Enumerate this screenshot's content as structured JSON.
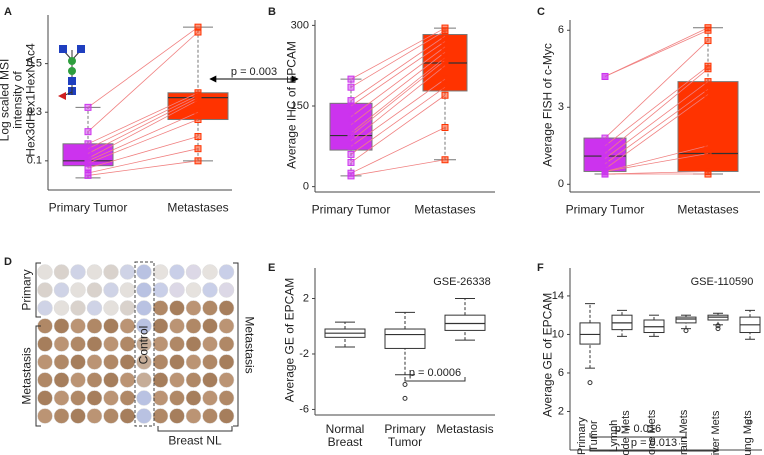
{
  "chart_data": [
    {
      "panel": "A",
      "type": "paired_box",
      "ylabel": "Log scaled MSI intensity of Hex3dHex1HexNAc4",
      "categories": [
        "Primary Tumor",
        "Metastases"
      ],
      "colors": [
        "#cc33ee",
        "#ff3300"
      ],
      "line_color": "#f08080",
      "ylim": [
        -0.02,
        0.7
      ],
      "yticks": [
        0.1,
        0.3,
        0.5
      ],
      "boxes": [
        {
          "whisker_low": 0.03,
          "q1": 0.08,
          "median": 0.1,
          "q3": 0.17,
          "whisker_high": 0.32
        },
        {
          "whisker_low": 0.1,
          "q1": 0.27,
          "median": 0.36,
          "q3": 0.38,
          "whisker_high": 0.65
        }
      ],
      "points": [
        [
          0.32,
          0.22,
          0.17,
          0.15,
          0.13,
          0.11,
          0.1,
          0.09,
          0.07,
          0.05,
          0.04
        ],
        [
          0.65,
          0.63,
          0.38,
          0.37,
          0.36,
          0.35,
          0.3,
          0.27,
          0.2,
          0.15,
          0.1
        ]
      ],
      "annotation": "p = 0.003"
    },
    {
      "panel": "B",
      "type": "paired_box",
      "ylabel": "Average IHC of EPCAM",
      "categories": [
        "Primary Tumor",
        "Metastases"
      ],
      "colors": [
        "#cc33ee",
        "#ff3300"
      ],
      "line_color": "#f08080",
      "ylim": [
        -10,
        310
      ],
      "yticks": [
        0,
        150,
        300
      ],
      "boxes": [
        {
          "whisker_low": 20,
          "q1": 68,
          "median": 95,
          "q3": 155,
          "whisker_high": 200
        },
        {
          "whisker_low": 50,
          "q1": 178,
          "median": 230,
          "q3": 283,
          "whisker_high": 295
        }
      ],
      "points": [
        [
          200,
          185,
          160,
          150,
          130,
          115,
          100,
          95,
          85,
          75,
          60,
          45,
          25,
          20
        ],
        [
          295,
          290,
          280,
          270,
          260,
          250,
          240,
          235,
          225,
          200,
          185,
          170,
          110,
          50
        ]
      ]
    },
    {
      "panel": "C",
      "type": "paired_box",
      "ylabel": "Average FISH of c-Myc",
      "categories": [
        "Primary Tumor",
        "Metastases"
      ],
      "colors": [
        "#cc33ee",
        "#ff3300"
      ],
      "line_color": "#f08080",
      "ylim": [
        -0.3,
        6.4
      ],
      "yticks": [
        0,
        3,
        6
      ],
      "boxes": [
        {
          "whisker_low": 0.4,
          "q1": 0.5,
          "median": 1.1,
          "q3": 1.8,
          "whisker_high": 1.8
        },
        {
          "whisker_low": 0.4,
          "q1": 0.5,
          "median": 1.2,
          "q3": 4.0,
          "whisker_high": 6.1
        }
      ],
      "points": [
        [
          4.2,
          4.2,
          1.8,
          1.5,
          1.2,
          1.0,
          0.8,
          0.6,
          0.5,
          0.5,
          0.4,
          0.4
        ],
        [
          6.1,
          6.0,
          5.6,
          4.6,
          4.5,
          4.0,
          3.7,
          3.5,
          1.5,
          1.2,
          0.5,
          0.4
        ]
      ]
    },
    {
      "panel": "E",
      "type": "box",
      "dataset": "GSE-26338",
      "ylabel": "Average GE of EPCAM",
      "color": "#333333",
      "categories": [
        "Normal Breast",
        "Primary Tumor",
        "Metastasis"
      ],
      "ylim": [
        -6.4,
        4.2
      ],
      "yticks": [
        -6,
        -2,
        2
      ],
      "boxes": [
        {
          "whisker_low": -1.5,
          "q1": -0.8,
          "median": -0.5,
          "q3": -0.2,
          "whisker_high": 0.3
        },
        {
          "whisker_low": -3.5,
          "q1": -1.6,
          "median": -0.6,
          "q3": -0.2,
          "whisker_high": 1.0,
          "outliers": [
            -4.2,
            -5.2
          ]
        },
        {
          "whisker_low": -1.0,
          "q1": -0.3,
          "median": 0.2,
          "q3": 0.8,
          "whisker_high": 2.0
        }
      ],
      "annotations": [
        "p = 0.0006"
      ]
    },
    {
      "panel": "F",
      "type": "box",
      "dataset": "GSE-110590",
      "ylabel": "Average GE of EPCAM",
      "color": "#333333",
      "categories": [
        "Primary Tumor",
        "Lymph node Mets",
        "Bone Mets",
        "Brain Mets",
        "Liver Mets",
        "Lung Mets"
      ],
      "ylim": [
        -2,
        16.9
      ],
      "yticks": [
        2,
        6,
        10,
        14
      ],
      "boxes": [
        {
          "whisker_low": 6.5,
          "q1": 9.0,
          "median": 10.0,
          "q3": 11.2,
          "whisker_high": 13.2,
          "outliers": [
            5.0
          ]
        },
        {
          "whisker_low": 9.8,
          "q1": 10.5,
          "median": 11.2,
          "q3": 12.0,
          "whisker_high": 12.5
        },
        {
          "whisker_low": 9.8,
          "q1": 10.2,
          "median": 10.8,
          "q3": 11.5,
          "whisker_high": 12.0
        },
        {
          "whisker_low": 10.6,
          "q1": 11.2,
          "median": 11.6,
          "q3": 11.8,
          "whisker_high": 12.0,
          "outliers": [
            10.4
          ]
        },
        {
          "whisker_low": 11.0,
          "q1": 11.5,
          "median": 11.8,
          "q3": 12.0,
          "whisker_high": 12.2,
          "outliers": [
            10.6,
            10.9
          ]
        },
        {
          "whisker_low": 9.5,
          "q1": 10.2,
          "median": 11.0,
          "q3": 11.8,
          "whisker_high": 12.5,
          "outliers": [
            0.9
          ]
        }
      ],
      "annotations": [
        "p = 0.016",
        "p = 0.013"
      ]
    }
  ],
  "tissue_microarray": {
    "panel": "D",
    "labels": {
      "primary": "Primary",
      "metastasis_left": "Metastasis",
      "control": "Control",
      "metastasis_right": "Metastasis",
      "breast_nl": "Breast NL"
    }
  }
}
